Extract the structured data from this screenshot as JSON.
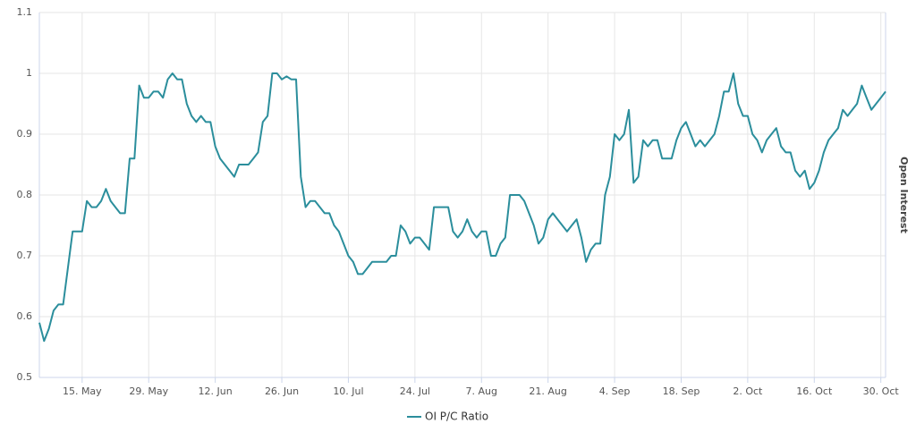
{
  "chart_data": {
    "type": "line",
    "y2_title": "Open Interest",
    "categories": [
      null,
      null,
      null,
      null,
      null,
      null,
      null,
      null,
      null,
      "15. May",
      null,
      null,
      null,
      null,
      null,
      null,
      null,
      null,
      null,
      null,
      null,
      null,
      null,
      "29. May",
      null,
      null,
      null,
      null,
      null,
      null,
      null,
      null,
      null,
      null,
      null,
      null,
      null,
      "12. Jun",
      null,
      null,
      null,
      null,
      null,
      null,
      null,
      null,
      null,
      null,
      null,
      null,
      null,
      "26. Jun",
      null,
      null,
      null,
      null,
      null,
      null,
      null,
      null,
      null,
      null,
      null,
      null,
      null,
      "10. Jul",
      null,
      null,
      null,
      null,
      null,
      null,
      null,
      null,
      null,
      null,
      null,
      null,
      null,
      "24. Jul",
      null,
      null,
      null,
      null,
      null,
      null,
      null,
      null,
      null,
      null,
      null,
      null,
      null,
      "7. Aug",
      null,
      null,
      null,
      null,
      null,
      null,
      null,
      null,
      null,
      null,
      null,
      null,
      null,
      "21. Aug",
      null,
      null,
      null,
      null,
      null,
      null,
      null,
      null,
      null,
      null,
      null,
      null,
      null,
      "4. Sep",
      null,
      null,
      null,
      null,
      null,
      null,
      null,
      null,
      null,
      null,
      null,
      null,
      null,
      "18. Sep",
      null,
      null,
      null,
      null,
      null,
      null,
      null,
      null,
      null,
      null,
      null,
      null,
      null,
      "2. Oct",
      null,
      null,
      null,
      null,
      null,
      null,
      null,
      null,
      null,
      null,
      null,
      null,
      null,
      "16. Oct",
      null,
      null,
      null,
      null,
      null,
      null,
      null,
      null,
      null,
      null,
      null,
      null,
      null,
      "30. Oct",
      null
    ],
    "series": [
      {
        "name": "OI P/C Ratio",
        "color": "#2b8e9c",
        "values": [
          0.59,
          0.56,
          0.58,
          0.61,
          0.62,
          0.62,
          0.68,
          0.74,
          0.74,
          0.74,
          0.79,
          0.78,
          0.78,
          0.79,
          0.81,
          0.79,
          0.78,
          0.77,
          0.77,
          0.86,
          0.86,
          0.98,
          0.96,
          0.96,
          0.97,
          0.97,
          0.96,
          0.99,
          1.0,
          0.99,
          0.99,
          0.95,
          0.93,
          0.92,
          0.93,
          0.92,
          0.92,
          0.88,
          0.86,
          0.85,
          0.84,
          0.83,
          0.85,
          0.85,
          0.85,
          0.86,
          0.87,
          0.92,
          0.93,
          1.0,
          1.0,
          0.99,
          0.995,
          0.99,
          0.99,
          0.83,
          0.78,
          0.79,
          0.79,
          0.78,
          0.77,
          0.77,
          0.75,
          0.74,
          0.72,
          0.7,
          0.69,
          0.67,
          0.67,
          0.68,
          0.69,
          0.69,
          0.69,
          0.69,
          0.7,
          0.7,
          0.75,
          0.74,
          0.72,
          0.73,
          0.73,
          0.72,
          0.71,
          0.78,
          0.78,
          0.78,
          0.78,
          0.74,
          0.73,
          0.74,
          0.76,
          0.74,
          0.73,
          0.74,
          0.74,
          0.7,
          0.7,
          0.72,
          0.73,
          0.8,
          0.8,
          0.8,
          0.79,
          0.77,
          0.75,
          0.72,
          0.73,
          0.76,
          0.77,
          0.76,
          0.75,
          0.74,
          0.75,
          0.76,
          0.73,
          0.69,
          0.71,
          0.72,
          0.72,
          0.8,
          0.83,
          0.9,
          0.89,
          0.9,
          0.94,
          0.82,
          0.83,
          0.89,
          0.88,
          0.89,
          0.89,
          0.86,
          0.86,
          0.86,
          0.89,
          0.91,
          0.92,
          0.9,
          0.88,
          0.89,
          0.88,
          0.89,
          0.9,
          0.93,
          0.97,
          0.97,
          1.0,
          0.95,
          0.93,
          0.93,
          0.9,
          0.89,
          0.87,
          0.89,
          0.9,
          0.91,
          0.88,
          0.87,
          0.87,
          0.84,
          0.83,
          0.84,
          0.81,
          0.82,
          0.84,
          0.87,
          0.89,
          0.9,
          0.91,
          0.94,
          0.93,
          0.94,
          0.95,
          0.98,
          0.96,
          0.94,
          0.95,
          0.96,
          0.97
        ]
      }
    ],
    "ylim": [
      0.5,
      1.1
    ],
    "yticks": [
      0.5,
      0.6,
      0.7,
      0.8,
      0.9,
      1,
      1.1
    ],
    "grid": true
  }
}
